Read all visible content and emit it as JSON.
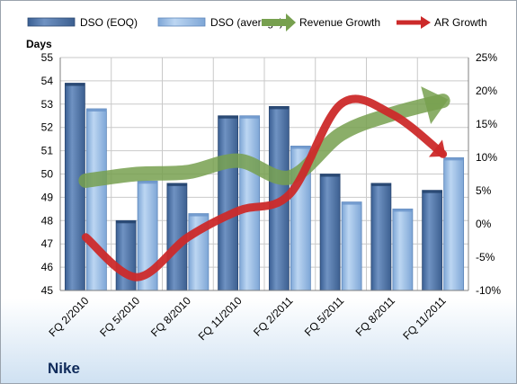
{
  "company": "Nike",
  "chart_data": {
    "type": "bar",
    "categories": [
      "FQ 2/2010",
      "FQ 5/2010",
      "FQ 8/2010",
      "FQ 11/2010",
      "FQ 2/2011",
      "FQ 5/2011",
      "FQ 8/2011",
      "FQ 11/2011"
    ],
    "y_left_label": "Days",
    "y_left_range": [
      45,
      55
    ],
    "y_left_ticks": [
      "45",
      "46",
      "47",
      "48",
      "49",
      "50",
      "51",
      "52",
      "53",
      "54",
      "55"
    ],
    "y_right_range": [
      -10,
      25
    ],
    "y_right_ticks": [
      "-10%",
      "-5%",
      "0%",
      "5%",
      "10%",
      "15%",
      "20%",
      "25%"
    ],
    "grid": true,
    "legend_position": "top",
    "series": [
      {
        "name": "DSO (EOQ)",
        "kind": "bar",
        "color": "#4f75a8",
        "values": [
          53.9,
          48.0,
          49.6,
          52.5,
          52.9,
          50.0,
          49.6,
          49.3
        ]
      },
      {
        "name": "DSO (average)",
        "kind": "bar",
        "color": "#8db4e2",
        "values": [
          52.8,
          49.7,
          48.3,
          52.5,
          51.2,
          48.8,
          48.5,
          50.7
        ]
      },
      {
        "name": "Revenue Growth",
        "kind": "arrow-line",
        "axis": "right",
        "color": "#77a04f",
        "values": [
          6.5,
          7.5,
          7.8,
          9.5,
          7.0,
          13.5,
          16.5,
          18.5
        ]
      },
      {
        "name": "AR Growth",
        "kind": "arrow-line",
        "axis": "right",
        "color": "#cc2a2a",
        "values": [
          -2.0,
          -8.0,
          -2.0,
          2.0,
          4.5,
          18.0,
          16.5,
          10.5
        ]
      }
    ]
  }
}
